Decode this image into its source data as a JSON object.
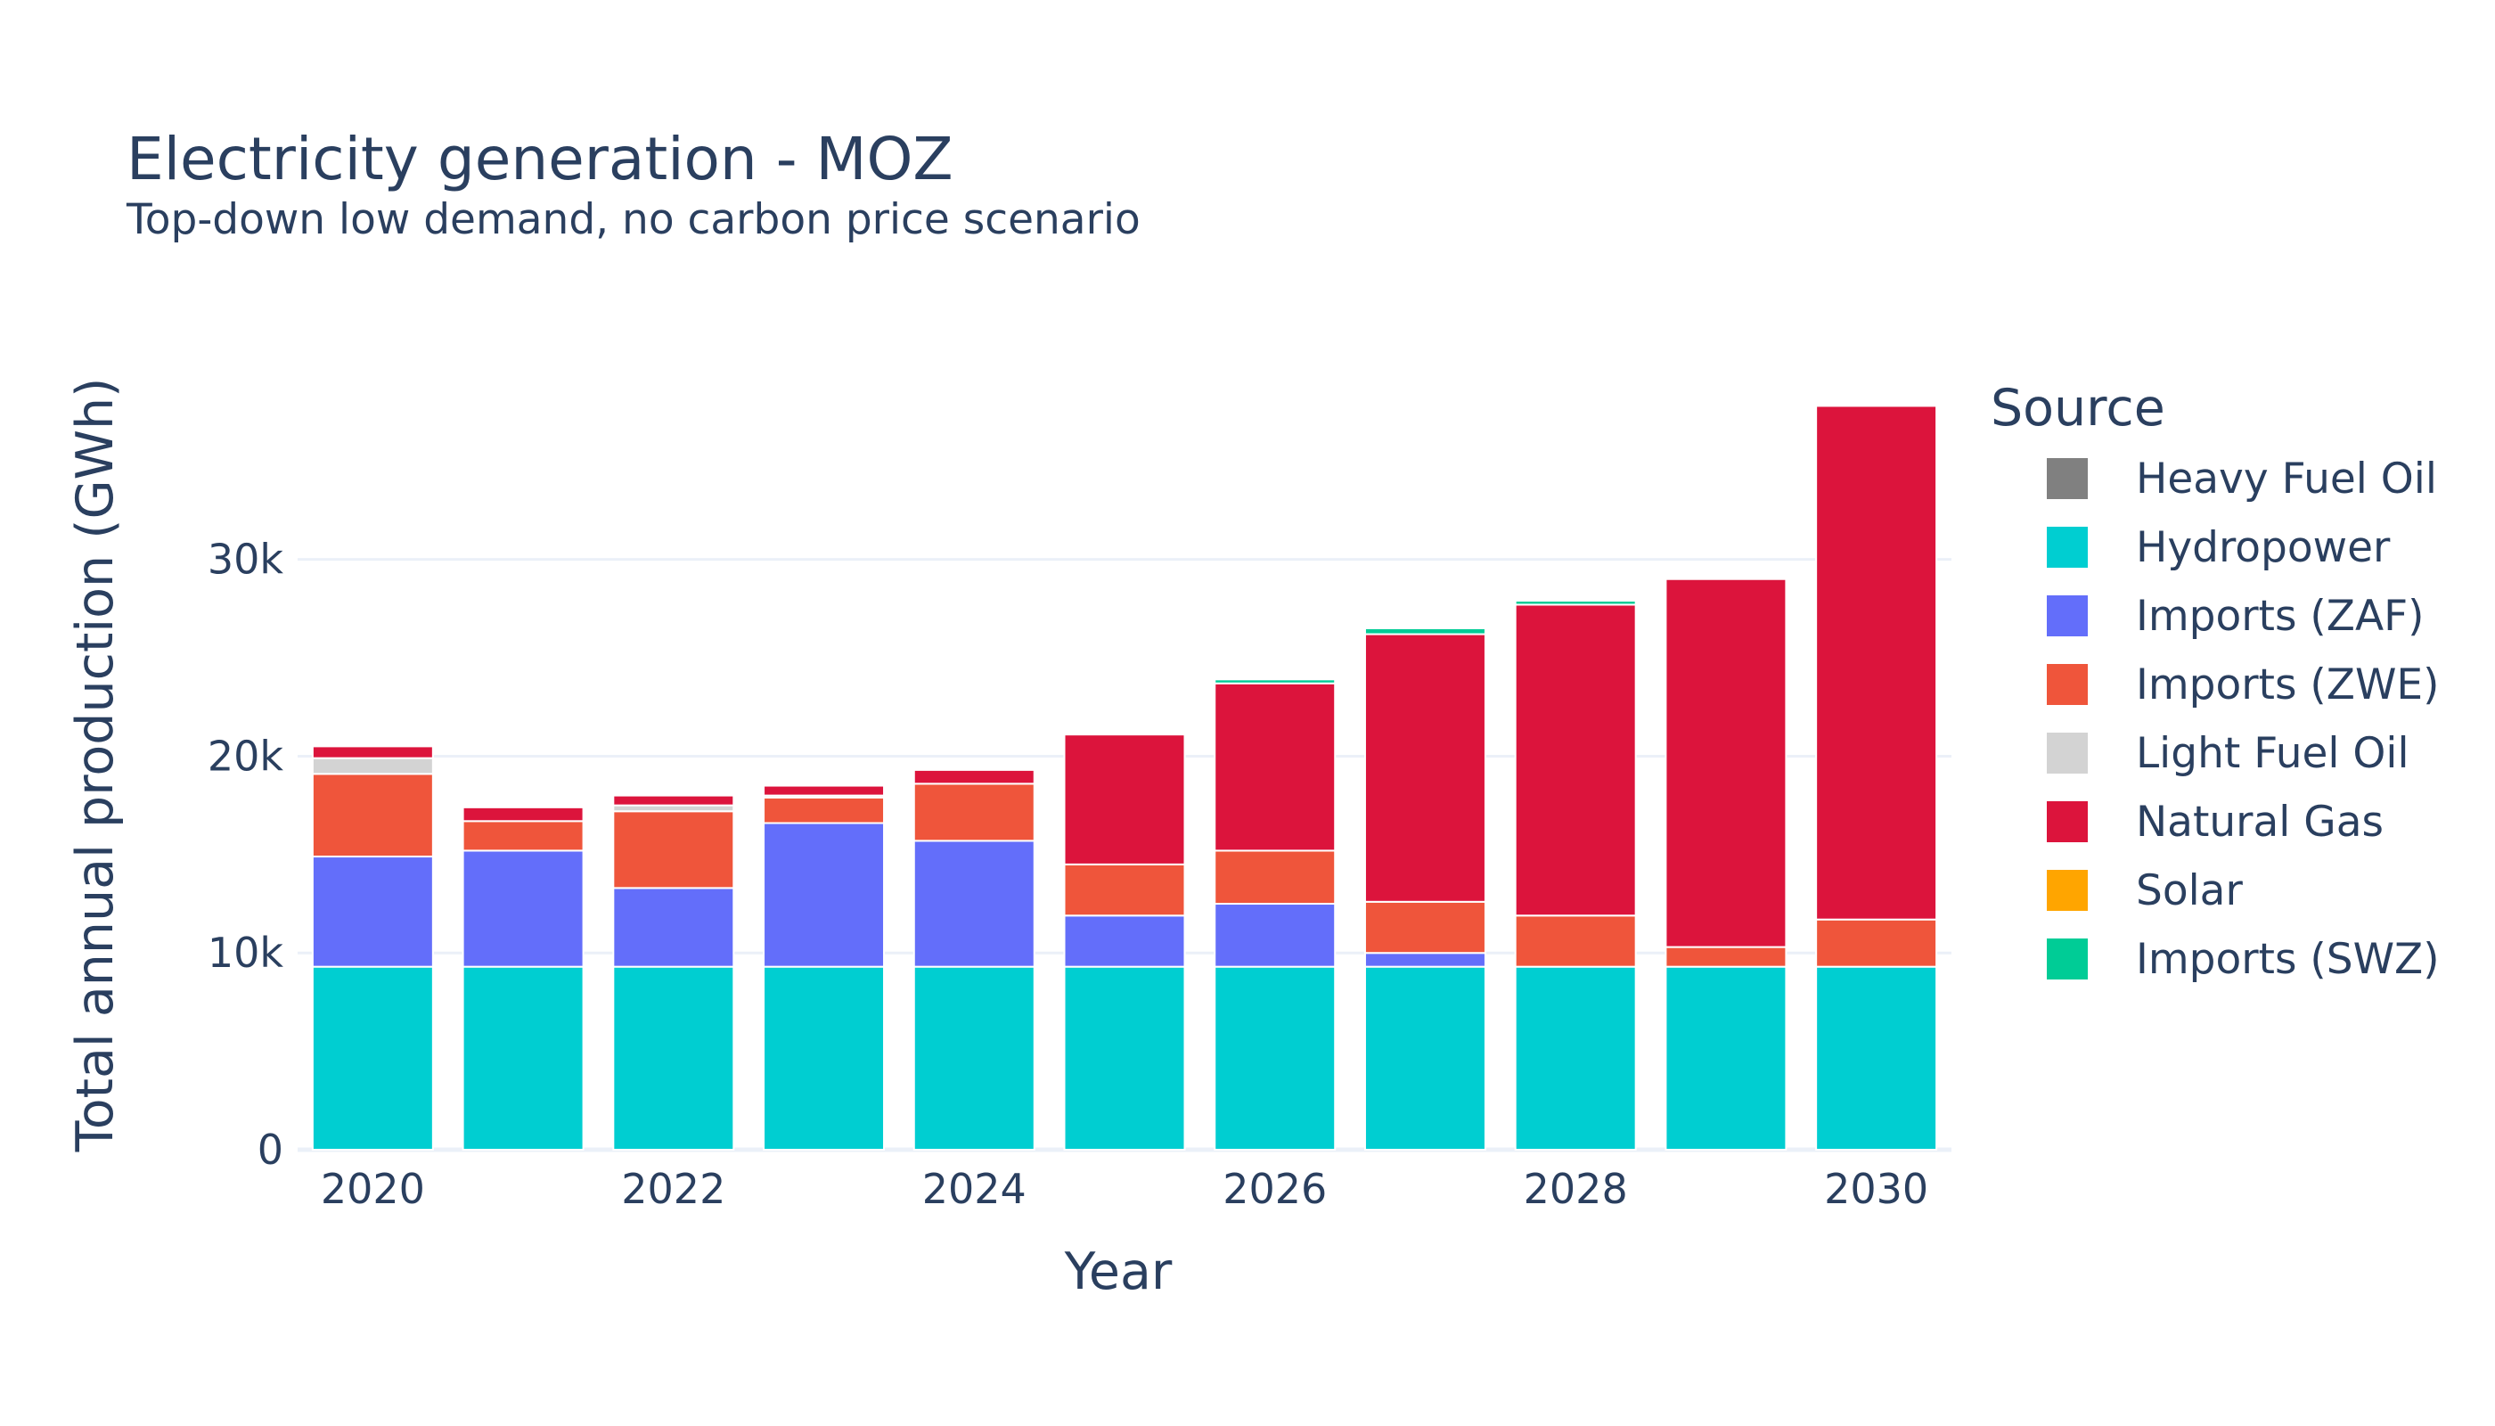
{
  "chart_data": {
    "type": "bar",
    "stacked": true,
    "title": "Electricity generation - MOZ",
    "subtitle": "Top-down low demand, no carbon price scenario",
    "xlabel": "Year",
    "ylabel": "Total annual production (GWh)",
    "ylim": [
      0,
      38500
    ],
    "grid": true,
    "legend_title": "Source",
    "legend_position": "right",
    "x": [
      2020,
      2021,
      2022,
      2023,
      2024,
      2025,
      2026,
      2027,
      2028,
      2029,
      2030
    ],
    "x_tick_labels": [
      "2020",
      "2022",
      "2024",
      "2026",
      "2028",
      "2030"
    ],
    "x_tick_values": [
      2020,
      2022,
      2024,
      2026,
      2028,
      2030
    ],
    "y_tick_labels": [
      "0",
      "10k",
      "20k",
      "30k"
    ],
    "y_tick_values": [
      0,
      10000,
      20000,
      30000
    ],
    "series": [
      {
        "name": "Heavy Fuel Oil",
        "color": "#808080",
        "values": [
          0,
          0,
          0,
          0,
          0,
          0,
          0,
          0,
          0,
          0,
          0
        ]
      },
      {
        "name": "Hydropower",
        "color": "#00CED1",
        "values": [
          9300,
          9300,
          9300,
          9300,
          9300,
          9300,
          9300,
          9300,
          9300,
          9300,
          9300
        ]
      },
      {
        "name": "Imports (ZAF)",
        "color": "#636EFA",
        "values": [
          5600,
          5900,
          4000,
          7300,
          6400,
          2600,
          3200,
          700,
          0,
          0,
          0
        ]
      },
      {
        "name": "Imports (ZWE)",
        "color": "#EF553B",
        "values": [
          4200,
          1500,
          3900,
          1300,
          2900,
          2600,
          2700,
          2600,
          2600,
          1000,
          2400
        ]
      },
      {
        "name": "Light Fuel Oil",
        "color": "#D3D3D3",
        "values": [
          800,
          0,
          300,
          100,
          0,
          0,
          0,
          0,
          0,
          0,
          0
        ]
      },
      {
        "name": "Natural Gas",
        "color": "#DC143C",
        "values": [
          600,
          700,
          500,
          500,
          700,
          6600,
          8500,
          13600,
          15800,
          18700,
          26100
        ]
      },
      {
        "name": "Solar",
        "color": "#FFA500",
        "values": [
          0,
          0,
          0,
          0,
          0,
          0,
          0,
          0,
          0,
          0,
          0
        ]
      },
      {
        "name": "Imports (SWZ)",
        "color": "#00CC96",
        "values": [
          0,
          0,
          0,
          0,
          0,
          0,
          200,
          300,
          200,
          0,
          0
        ]
      }
    ]
  }
}
